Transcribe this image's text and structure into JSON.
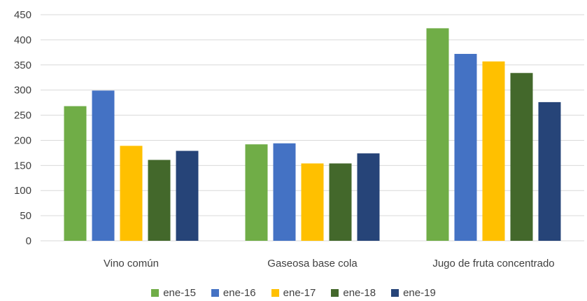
{
  "chart_data": {
    "type": "bar",
    "title": "",
    "xlabel": "",
    "ylabel": "",
    "ylim": [
      0,
      450
    ],
    "yticks": [
      0,
      50,
      100,
      150,
      200,
      250,
      300,
      350,
      400,
      450
    ],
    "grid": true,
    "legend_position": "bottom",
    "categories": [
      "Vino común",
      "Gaseosa base cola",
      "Jugo de fruta concentrado"
    ],
    "series": [
      {
        "name": "ene-15",
        "color": "#70AD47",
        "values": [
          268,
          192,
          423
        ]
      },
      {
        "name": "ene-16",
        "color": "#4472C4",
        "values": [
          299,
          194,
          372
        ]
      },
      {
        "name": "ene-17",
        "color": "#FFC000",
        "values": [
          189,
          154,
          357
        ]
      },
      {
        "name": "ene-18",
        "color": "#43682B",
        "values": [
          161,
          154,
          334
        ]
      },
      {
        "name": "ene-19",
        "color": "#264478",
        "values": [
          179,
          174,
          276
        ]
      }
    ]
  }
}
